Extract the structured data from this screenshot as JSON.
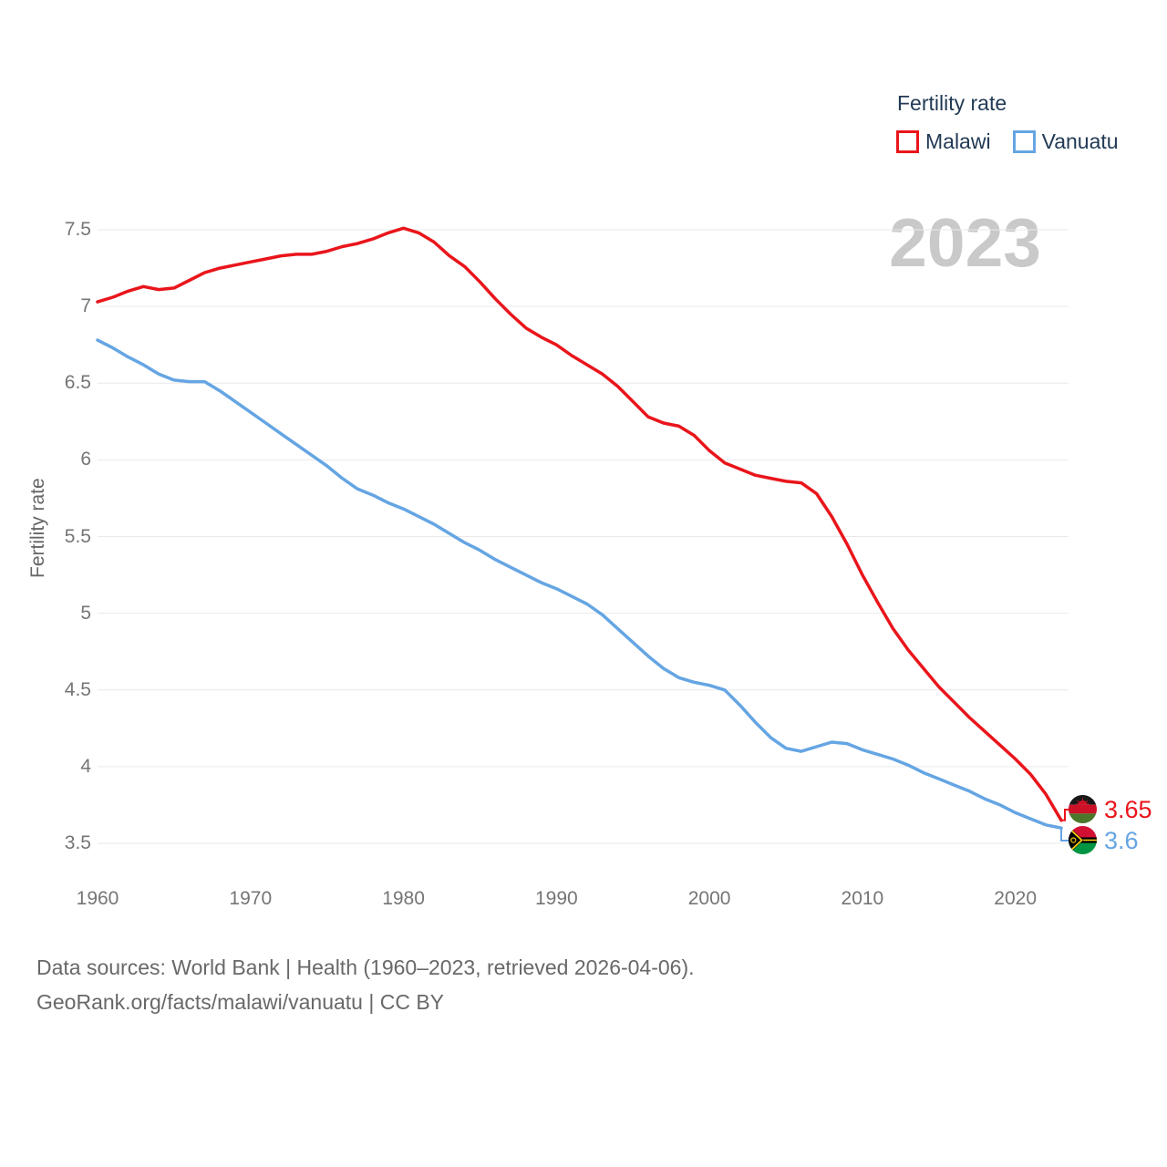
{
  "watermark": "2023",
  "legend": {
    "title": "Fertility rate",
    "items": [
      {
        "label": "Malawi",
        "color": "#e9151b"
      },
      {
        "label": "Vanuatu",
        "color": "#65a5e3"
      }
    ]
  },
  "end_labels": [
    {
      "series": "Malawi",
      "value": "3.65",
      "color": "#e9151b",
      "flag": "malawi-flag"
    },
    {
      "series": "Vanuatu",
      "value": "3.6",
      "color": "#65a5e3",
      "flag": "vanuatu-flag"
    }
  ],
  "footer": {
    "line1": "Data sources: World Bank | Health (1960–2023, retrieved 2026-04-06).",
    "line2": "GeoRank.org/facts/malawi/vanuatu | CC BY"
  },
  "chart_data": {
    "type": "line",
    "title": "Fertility rate",
    "xlabel": "",
    "ylabel": "Fertility rate",
    "xlim": [
      1960,
      2023
    ],
    "ylim": [
      3.5,
      7.5
    ],
    "x_ticks": [
      1960,
      1970,
      1980,
      1990,
      2000,
      2010,
      2020
    ],
    "y_ticks": [
      3.5,
      4,
      4.5,
      5,
      5.5,
      6,
      6.5,
      7,
      7.5
    ],
    "grid": "horizontal",
    "legend_position": "top-right",
    "x": [
      1960,
      1961,
      1962,
      1963,
      1964,
      1965,
      1966,
      1967,
      1968,
      1969,
      1970,
      1971,
      1972,
      1973,
      1974,
      1975,
      1976,
      1977,
      1978,
      1979,
      1980,
      1981,
      1982,
      1983,
      1984,
      1985,
      1986,
      1987,
      1988,
      1989,
      1990,
      1991,
      1992,
      1993,
      1994,
      1995,
      1996,
      1997,
      1998,
      1999,
      2000,
      2001,
      2002,
      2003,
      2004,
      2005,
      2006,
      2007,
      2008,
      2009,
      2010,
      2011,
      2012,
      2013,
      2014,
      2015,
      2016,
      2017,
      2018,
      2019,
      2020,
      2021,
      2022,
      2023
    ],
    "series": [
      {
        "name": "Malawi",
        "color": "#e9151b",
        "end_label": "3.65",
        "values": [
          7.03,
          7.06,
          7.1,
          7.13,
          7.11,
          7.12,
          7.17,
          7.22,
          7.25,
          7.27,
          7.29,
          7.31,
          7.33,
          7.34,
          7.34,
          7.36,
          7.39,
          7.41,
          7.44,
          7.48,
          7.51,
          7.48,
          7.42,
          7.33,
          7.26,
          7.16,
          7.05,
          6.95,
          6.86,
          6.8,
          6.75,
          6.68,
          6.62,
          6.56,
          6.48,
          6.38,
          6.28,
          6.24,
          6.22,
          6.16,
          6.06,
          5.98,
          5.94,
          5.9,
          5.88,
          5.86,
          5.85,
          5.78,
          5.63,
          5.45,
          5.25,
          5.07,
          4.9,
          4.76,
          4.64,
          4.52,
          4.42,
          4.32,
          4.23,
          4.14,
          4.05,
          3.95,
          3.82,
          3.65
        ]
      },
      {
        "name": "Vanuatu",
        "color": "#65a5e3",
        "end_label": "3.6",
        "values": [
          6.78,
          6.73,
          6.67,
          6.62,
          6.56,
          6.52,
          6.51,
          6.51,
          6.45,
          6.38,
          6.31,
          6.24,
          6.17,
          6.1,
          6.03,
          5.96,
          5.88,
          5.81,
          5.77,
          5.72,
          5.68,
          5.63,
          5.58,
          5.52,
          5.46,
          5.41,
          5.35,
          5.3,
          5.25,
          5.2,
          5.16,
          5.11,
          5.06,
          4.99,
          4.9,
          4.81,
          4.72,
          4.64,
          4.58,
          4.55,
          4.53,
          4.5,
          4.4,
          4.29,
          4.19,
          4.12,
          4.1,
          4.13,
          4.16,
          4.15,
          4.11,
          4.08,
          4.05,
          4.01,
          3.96,
          3.92,
          3.88,
          3.84,
          3.79,
          3.75,
          3.7,
          3.66,
          3.62,
          3.6
        ]
      }
    ]
  }
}
